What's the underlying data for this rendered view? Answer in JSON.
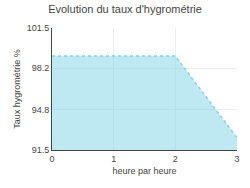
{
  "chart_data": {
    "type": "area",
    "title": "Evolution du taux d'hygrométrie",
    "xlabel": "heure par heure",
    "ylabel": "Taux hygrométrie %",
    "x": [
      0,
      2,
      3
    ],
    "values": [
      99.2,
      99.2,
      92.5
    ],
    "xlim": [
      0,
      3
    ],
    "ylim": [
      91.5,
      101.5
    ],
    "xticks": [
      0,
      1,
      2,
      3
    ],
    "yticks": [
      91.5,
      94.8,
      98.2,
      101.5
    ],
    "color": "#7dd4e8",
    "line_style": "dotted",
    "grid": true
  }
}
